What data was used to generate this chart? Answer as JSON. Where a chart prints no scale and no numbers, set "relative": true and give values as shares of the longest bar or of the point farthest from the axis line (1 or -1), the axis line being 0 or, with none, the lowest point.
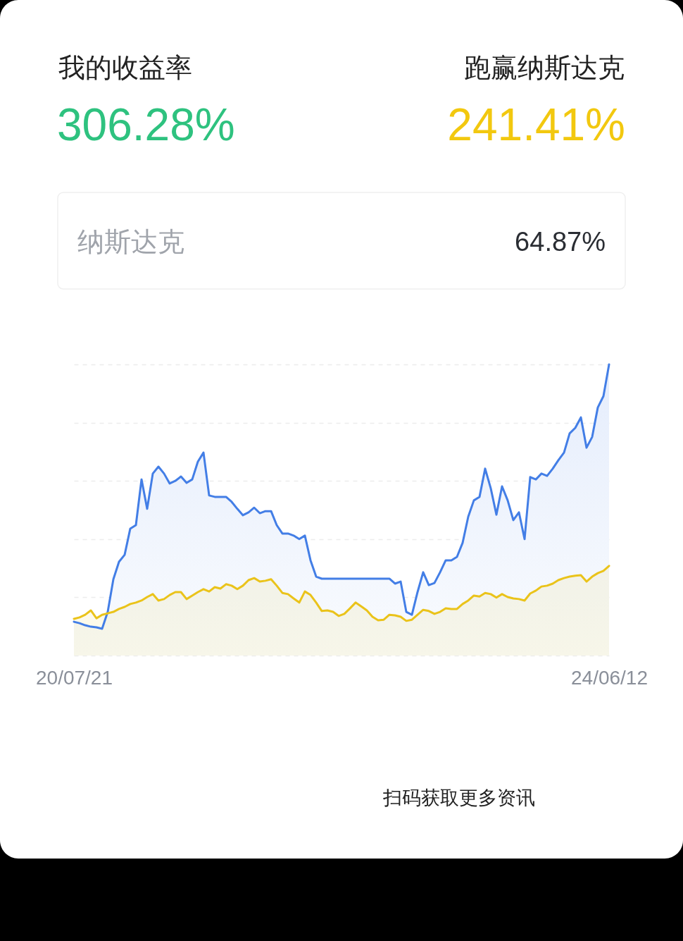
{
  "chart_data": {
    "type": "area",
    "relative": true,
    "grid": "y",
    "tick_labels": "x",
    "categories": [
      "20/07/21",
      null,
      null,
      null,
      null,
      null,
      null,
      null,
      null,
      null,
      null,
      null,
      null,
      null,
      null,
      null,
      null,
      null,
      null,
      null,
      null,
      null,
      null,
      null,
      null,
      null,
      null,
      null,
      null,
      null,
      null,
      null,
      null,
      null,
      null,
      null,
      null,
      null,
      null,
      null,
      null,
      null,
      null,
      null,
      null,
      null,
      null,
      null,
      null,
      null,
      null,
      null,
      null,
      null,
      null,
      null,
      null,
      null,
      null,
      null,
      null,
      null,
      null,
      null,
      null,
      null,
      null,
      null,
      null,
      null,
      null,
      null,
      null,
      null,
      null,
      null,
      null,
      null,
      null,
      null,
      null,
      null,
      null,
      null,
      null,
      null,
      null,
      null,
      null,
      null,
      null,
      null,
      null,
      null,
      null,
      "24/06/12"
    ],
    "series": [
      {
        "color": "#437ee6",
        "values": [
          0.116,
          0.111,
          0.104,
          0.099,
          0.097,
          0.092,
          0.15,
          0.262,
          0.322,
          0.346,
          0.436,
          0.448,
          0.605,
          0.504,
          0.625,
          0.649,
          0.625,
          0.591,
          0.6,
          0.615,
          0.593,
          0.605,
          0.666,
          0.697,
          0.55,
          0.545,
          0.545,
          0.545,
          0.528,
          0.504,
          0.482,
          0.492,
          0.508,
          0.489,
          0.496,
          0.496,
          0.448,
          0.419,
          0.419,
          0.412,
          0.4,
          0.412,
          0.327,
          0.271,
          0.264,
          0.264,
          0.264,
          0.264,
          0.264,
          0.264,
          0.264,
          0.264,
          0.264,
          0.264,
          0.264,
          0.264,
          0.264,
          0.247,
          0.254,
          0.15,
          0.14,
          0.218,
          0.286,
          0.242,
          0.249,
          0.286,
          0.327,
          0.327,
          0.339,
          0.387,
          0.477,
          0.533,
          0.545,
          0.642,
          0.574,
          0.484,
          0.581,
          0.533,
          0.465,
          0.492,
          0.4,
          0.613,
          0.605,
          0.625,
          0.617,
          0.642,
          0.671,
          0.697,
          0.763,
          0.782,
          0.818,
          0.714,
          0.751,
          0.852,
          0.891,
          1
        ]
      },
      {
        "color": "#eac31a",
        "values": [
          0.126,
          0.131,
          0.14,
          0.155,
          0.128,
          0.14,
          0.145,
          0.15,
          0.16,
          0.167,
          0.177,
          0.182,
          0.189,
          0.201,
          0.211,
          0.189,
          0.194,
          0.208,
          0.218,
          0.218,
          0.194,
          0.206,
          0.218,
          0.228,
          0.22,
          0.235,
          0.23,
          0.245,
          0.24,
          0.228,
          0.24,
          0.259,
          0.266,
          0.254,
          0.257,
          0.262,
          0.24,
          0.215,
          0.211,
          0.196,
          0.182,
          0.22,
          0.208,
          0.182,
          0.153,
          0.155,
          0.15,
          0.136,
          0.143,
          0.162,
          0.182,
          0.169,
          0.155,
          0.133,
          0.121,
          0.123,
          0.14,
          0.138,
          0.133,
          0.119,
          0.123,
          0.14,
          0.157,
          0.153,
          0.143,
          0.15,
          0.162,
          0.16,
          0.16,
          0.177,
          0.189,
          0.206,
          0.203,
          0.215,
          0.211,
          0.199,
          0.211,
          0.201,
          0.196,
          0.194,
          0.189,
          0.213,
          0.223,
          0.237,
          0.24,
          0.247,
          0.259,
          0.266,
          0.271,
          0.274,
          0.276,
          0.254,
          0.271,
          0.283,
          0.291,
          0.308
        ]
      }
    ],
    "annotations": [
      "我的收益率",
      "306.28%",
      "跑赢纳斯达克",
      "241.41%",
      "纳斯达克",
      "64.87%",
      "扫码获取更多资讯"
    ]
  }
}
